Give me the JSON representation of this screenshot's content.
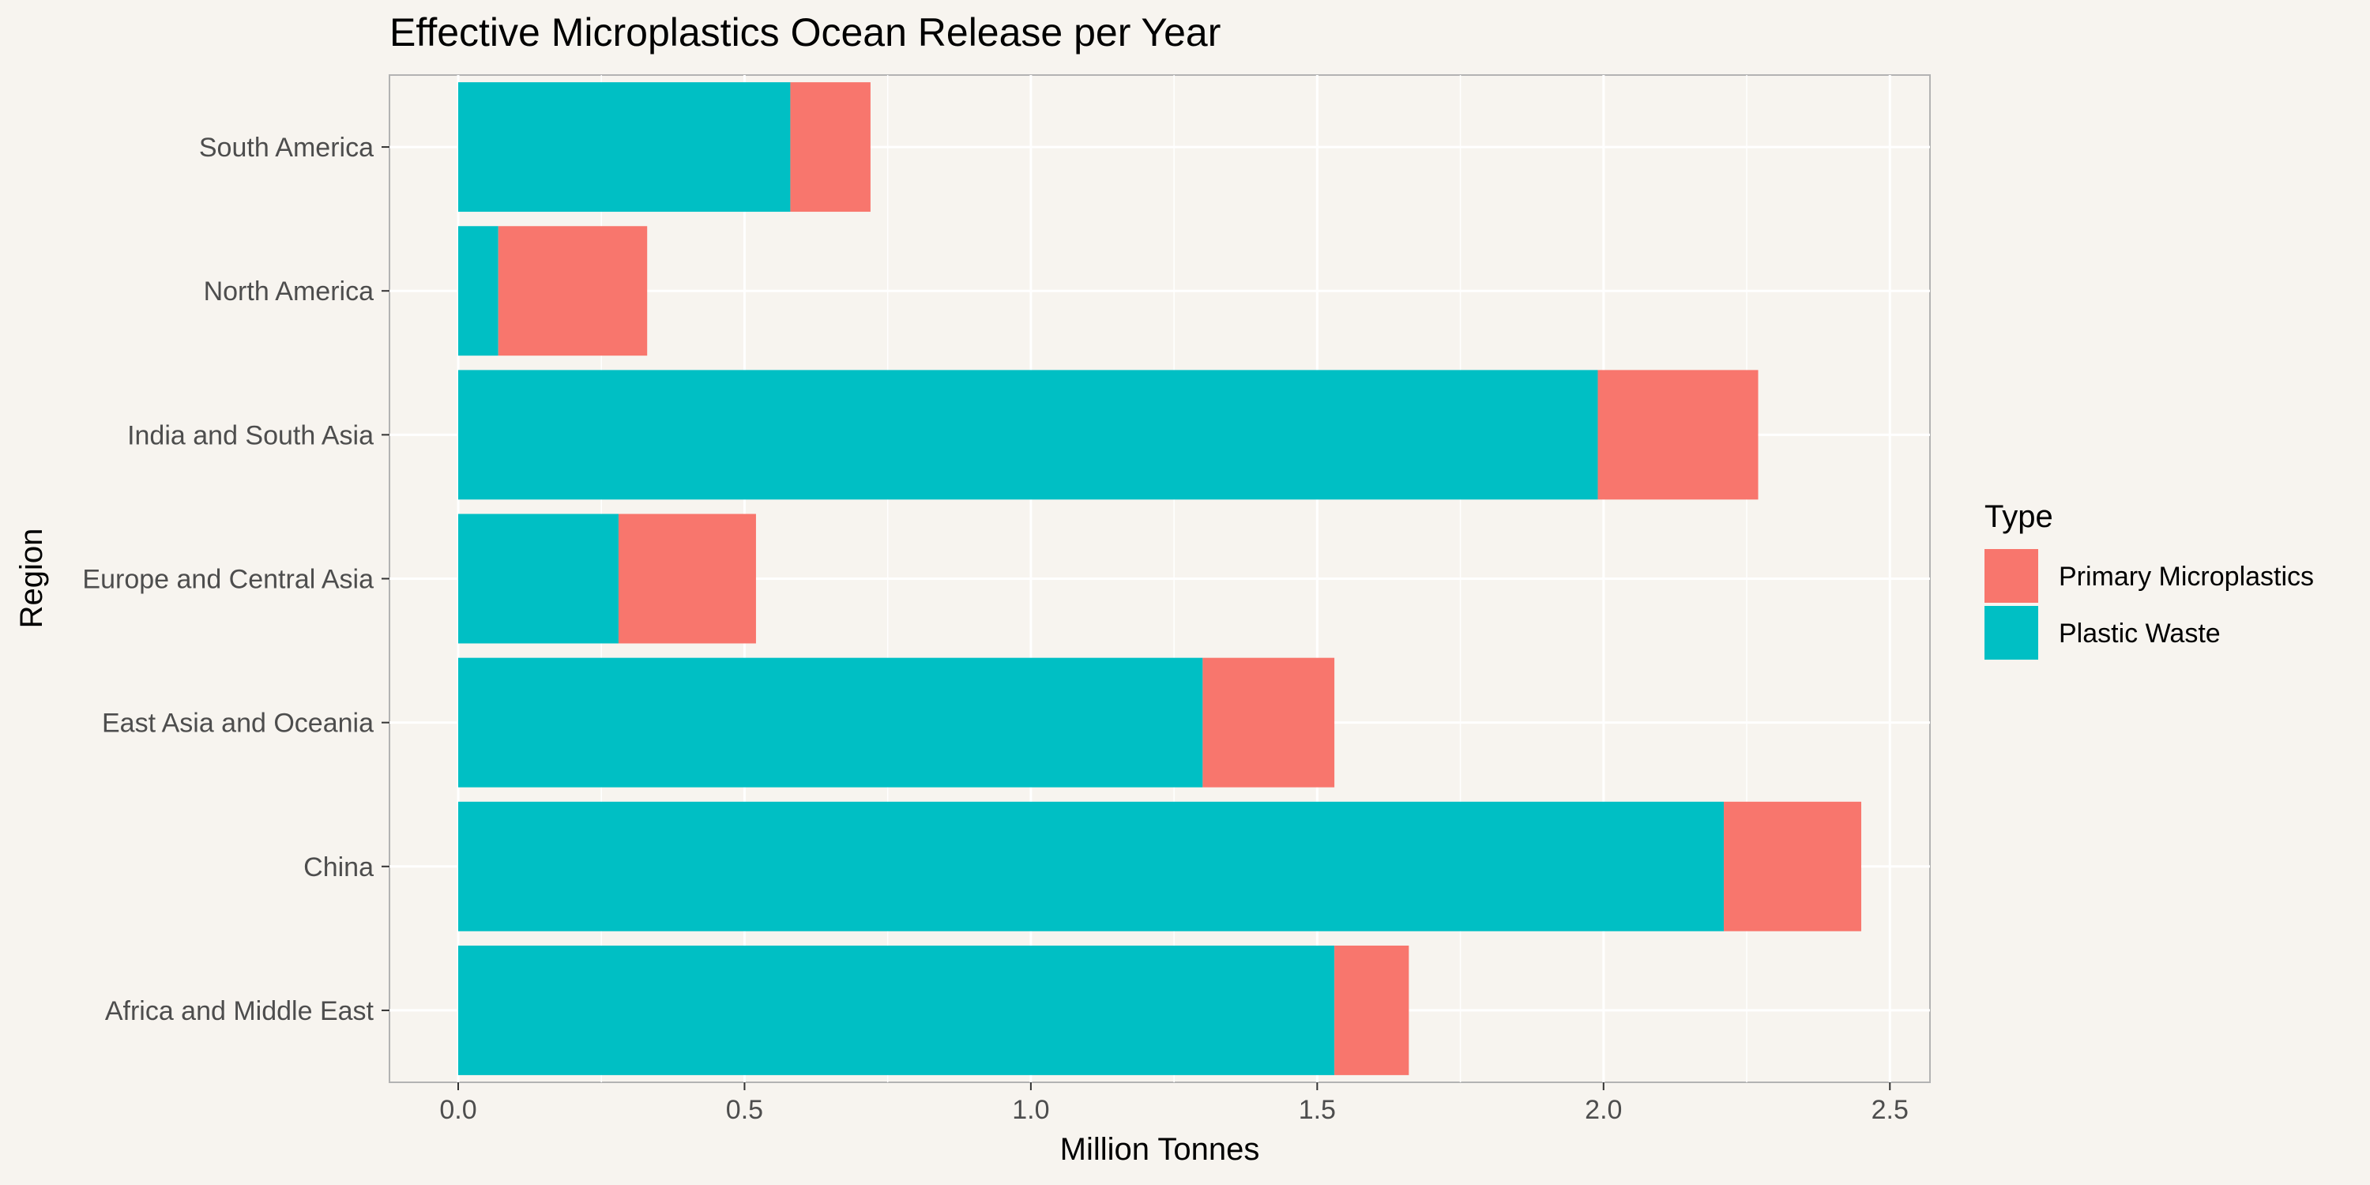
{
  "chart_data": {
    "type": "bar",
    "orientation": "horizontal",
    "stacked": true,
    "title": "Effective Microplastics Ocean Release per Year",
    "xlabel": "Million Tonnes",
    "ylabel": "Region",
    "xlim": [
      -0.12,
      2.57
    ],
    "xticks": [
      "0.0",
      "0.5",
      "1.0",
      "1.5",
      "2.0",
      "2.5"
    ],
    "categories": [
      "Africa and Middle East",
      "China",
      "East Asia and Oceania",
      "Europe and Central Asia",
      "India and South Asia",
      "North America",
      "South America"
    ],
    "series": [
      {
        "name": "Plastic Waste",
        "color": "#00bfc4",
        "values": [
          1.53,
          2.21,
          1.3,
          0.28,
          1.99,
          0.07,
          0.58
        ]
      },
      {
        "name": "Primary Microplastics",
        "color": "#f8766d",
        "values": [
          0.13,
          0.24,
          0.23,
          0.24,
          0.28,
          0.26,
          0.14
        ]
      }
    ],
    "legend": {
      "title": "Type",
      "position": "right",
      "order": [
        "Primary Microplastics",
        "Plastic Waste"
      ]
    },
    "grid": true,
    "panel_background": "#f7f4ef",
    "gridline_color": "#ffffff"
  }
}
